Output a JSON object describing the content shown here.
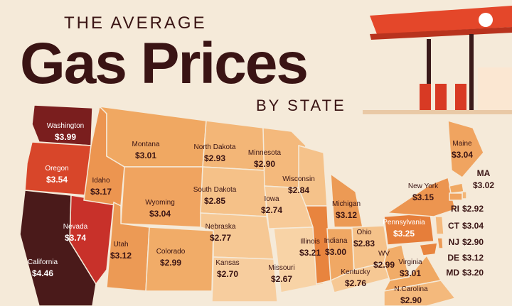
{
  "header": {
    "kicker": "THE AVERAGE",
    "title": "Gas Prices",
    "subtitle": "BY STATE"
  },
  "states": [
    {
      "name": "Washington",
      "price": "$3.99",
      "color": "#7a1e1e"
    },
    {
      "name": "Oregon",
      "price": "$3.54",
      "color": "#d8462a"
    },
    {
      "name": "California",
      "price": "$4.46",
      "color": "#4a1a1a"
    },
    {
      "name": "Nevada",
      "price": "$3.74",
      "color": "#c8312a"
    },
    {
      "name": "Idaho",
      "price": "$3.17",
      "color": "#ec9550"
    },
    {
      "name": "Montana",
      "price": "$3.01",
      "color": "#f0a862"
    },
    {
      "name": "Wyoming",
      "price": "$3.04",
      "color": "#f0a460"
    },
    {
      "name": "Utah",
      "price": "$3.12",
      "color": "#ec9a55"
    },
    {
      "name": "Colorado",
      "price": "$2.99",
      "color": "#f1ac68"
    },
    {
      "name": "North Dakota",
      "price": "$2.93",
      "color": "#f3b677"
    },
    {
      "name": "South Dakota",
      "price": "$2.85",
      "color": "#f5c188"
    },
    {
      "name": "Nebraska",
      "price": "$2.77",
      "color": "#f6c894"
    },
    {
      "name": "Kansas",
      "price": "$2.70",
      "color": "#f7cd9e"
    },
    {
      "name": "Minnesota",
      "price": "$2.90",
      "color": "#f4b97c"
    },
    {
      "name": "Iowa",
      "price": "$2.74",
      "color": "#f7ca98"
    },
    {
      "name": "Missouri",
      "price": "$2.67",
      "color": "#f8d3a6"
    },
    {
      "name": "Wisconsin",
      "price": "$2.84",
      "color": "#f5c28a"
    },
    {
      "name": "Illinois",
      "price": "$3.21",
      "color": "#e8843e"
    },
    {
      "name": "Michigan",
      "price": "$3.12",
      "color": "#ec9a55"
    },
    {
      "name": "Indiana",
      "price": "$3.00",
      "color": "#f0a864"
    },
    {
      "name": "Ohio",
      "price": "$2.83",
      "color": "#f5c28a"
    },
    {
      "name": "Kentucky",
      "price": "$2.76",
      "color": "#f6c894"
    },
    {
      "name": "WV",
      "price": "$2.99",
      "color": "#f1ac68"
    },
    {
      "name": "Virginia",
      "price": "$3.01",
      "color": "#f0a862"
    },
    {
      "name": "Pennsylvania",
      "price": "$3.25",
      "color": "#e67e3a"
    },
    {
      "name": "New York",
      "price": "$3.15",
      "color": "#ec9550"
    },
    {
      "name": "Maine",
      "price": "$3.04",
      "color": "#f0a460"
    },
    {
      "name": "N.Carolina",
      "price": "$2.90",
      "color": "#f4b97c"
    },
    {
      "name": "MA",
      "price": "$3.02",
      "color": "#f0a862"
    },
    {
      "name": "RI",
      "price": "$2.92",
      "color": "#f3b677"
    },
    {
      "name": "CT",
      "price": "$3.04",
      "color": "#f0a460"
    },
    {
      "name": "NJ",
      "price": "$2.90",
      "color": "#f4b97c"
    },
    {
      "name": "DE",
      "price": "$3.12",
      "color": "#ec9a55"
    },
    {
      "name": "MD",
      "price": "$3.20",
      "color": "#e8843e"
    }
  ]
}
